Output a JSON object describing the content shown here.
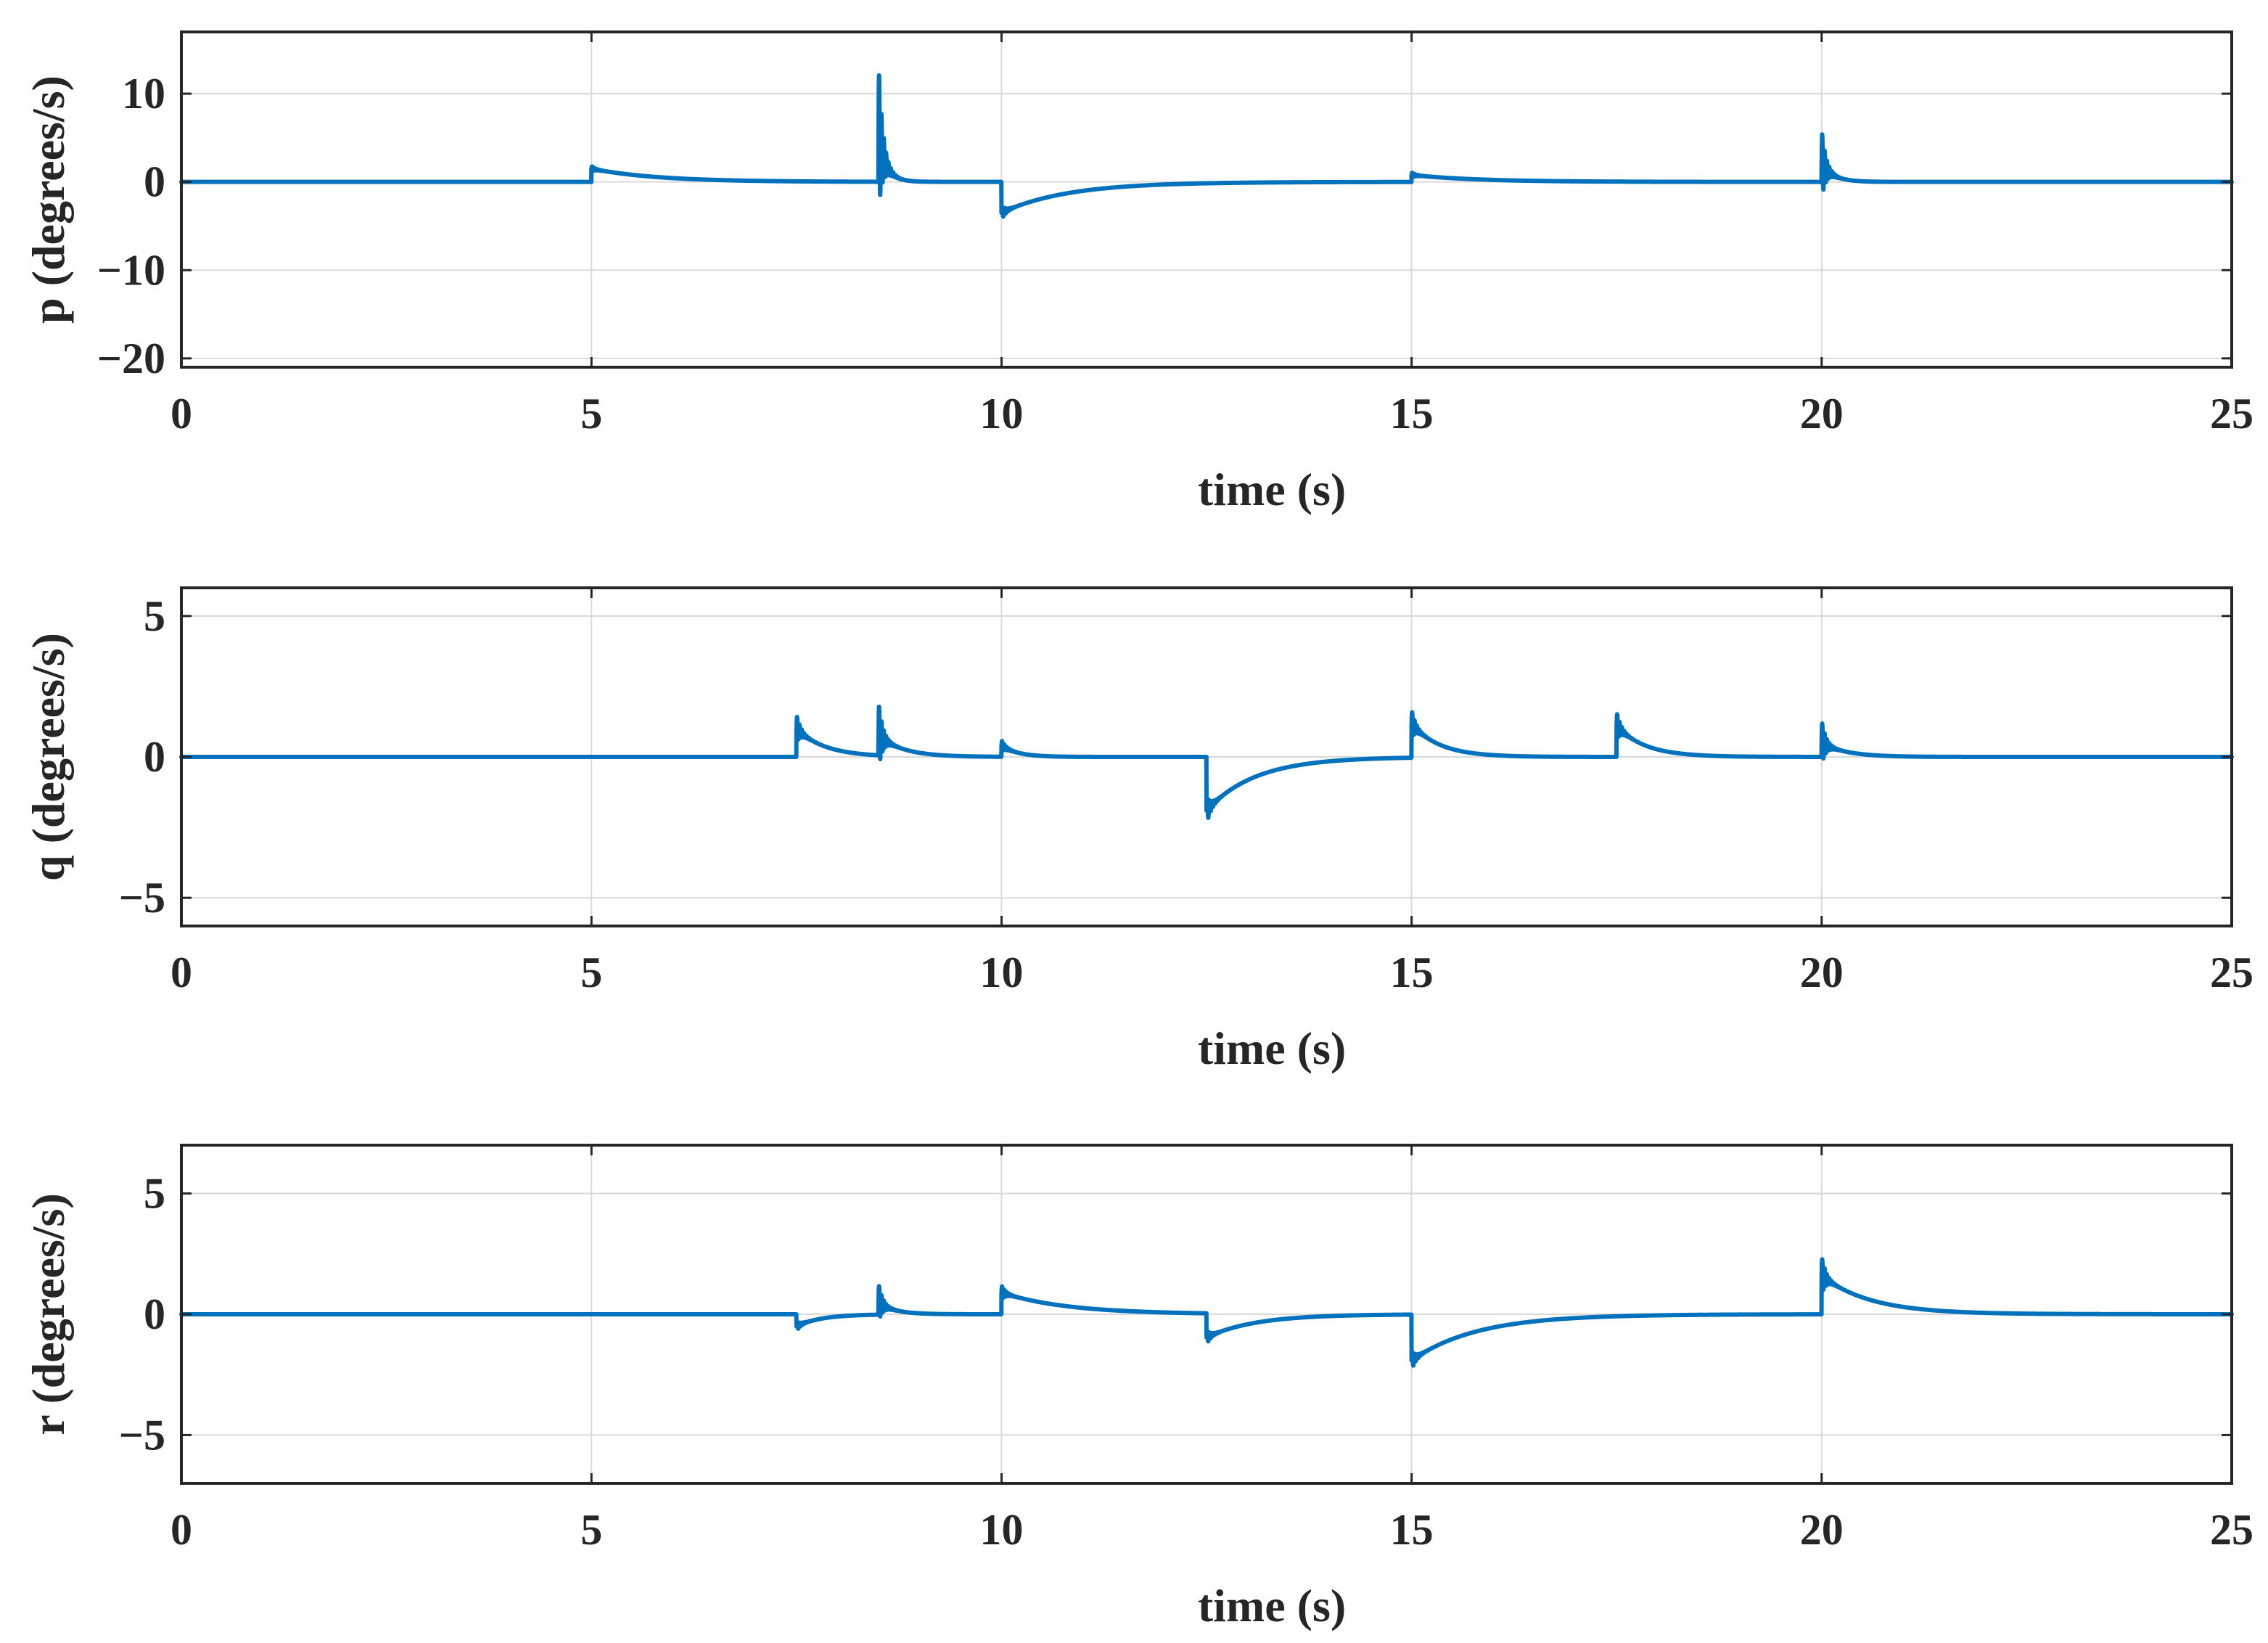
{
  "figure": {
    "background": "#ffffff",
    "series_color": "#0072BD"
  },
  "chart_data": [
    {
      "type": "line",
      "xlabel": "time (s)",
      "ylabel": "p (degrees/s)",
      "xlim": [
        0,
        25
      ],
      "ylim": [
        -21,
        17
      ],
      "xticks": [
        0,
        5,
        10,
        15,
        20,
        25
      ],
      "yticks": [
        -20,
        -10,
        0,
        10
      ],
      "xtick_labels": [
        "0",
        "5",
        "10",
        "15",
        "20",
        "25"
      ],
      "ytick_labels": [
        "−20",
        "−10",
        "0",
        "10"
      ],
      "grid": true,
      "series": [
        {
          "color": "#0072BD",
          "events": [
            {
              "t": 5.0,
              "amp": 1.5,
              "tau": 0.8,
              "osc": 0.3
            },
            {
              "t": 8.5,
              "amp": 5.0,
              "tau": 0.1,
              "osc": 8.5
            },
            {
              "t": 10.0,
              "amp": -3.5,
              "tau": 0.8,
              "osc": 0.8
            },
            {
              "t": 15.0,
              "amp": 0.8,
              "tau": 0.8,
              "osc": 0.3
            },
            {
              "t": 20.0,
              "amp": 2.0,
              "tau": 0.15,
              "osc": 4.0
            }
          ],
          "points": [
            [
              0,
              0
            ],
            [
              25,
              0
            ]
          ]
        }
      ]
    },
    {
      "type": "line",
      "xlabel": "time (s)",
      "ylabel": "q (degrees/s)",
      "xlim": [
        0,
        25
      ],
      "ylim": [
        -6,
        6
      ],
      "xticks": [
        0,
        5,
        10,
        15,
        20,
        25
      ],
      "yticks": [
        -5,
        0,
        5
      ],
      "xtick_labels": [
        "0",
        "5",
        "10",
        "15",
        "20",
        "25"
      ],
      "ytick_labels": [
        "−5",
        "0",
        "5"
      ],
      "grid": true,
      "series": [
        {
          "color": "#0072BD",
          "events": [
            {
              "t": 7.5,
              "amp": 1.0,
              "tau": 0.35,
              "osc": 0.5
            },
            {
              "t": 8.5,
              "amp": 0.7,
              "tau": 0.3,
              "osc": 1.2
            },
            {
              "t": 10.0,
              "amp": 0.4,
              "tau": 0.2,
              "osc": 0.2
            },
            {
              "t": 12.5,
              "amp": -1.9,
              "tau": 0.6,
              "osc": 0.5
            },
            {
              "t": 15.0,
              "amp": 1.2,
              "tau": 0.35,
              "osc": 0.5
            },
            {
              "t": 17.5,
              "amp": 1.1,
              "tau": 0.35,
              "osc": 0.5
            },
            {
              "t": 20.0,
              "amp": 0.5,
              "tau": 0.3,
              "osc": 0.8
            }
          ],
          "points": [
            [
              0,
              0
            ],
            [
              25,
              0
            ]
          ]
        }
      ]
    },
    {
      "type": "line",
      "xlabel": "time (s)",
      "ylabel": "r (degrees/s)",
      "xlim": [
        0,
        25
      ],
      "ylim": [
        -7,
        7
      ],
      "xticks": [
        0,
        5,
        10,
        15,
        20,
        25
      ],
      "yticks": [
        -5,
        0,
        5
      ],
      "xtick_labels": [
        "0",
        "5",
        "10",
        "15",
        "20",
        "25"
      ],
      "ytick_labels": [
        "−5",
        "0",
        "5"
      ],
      "grid": true,
      "series": [
        {
          "color": "#0072BD",
          "events": [
            {
              "t": 7.5,
              "amp": -0.5,
              "tau": 0.3,
              "osc": 0.2
            },
            {
              "t": 8.5,
              "amp": 0.5,
              "tau": 0.2,
              "osc": 0.8
            },
            {
              "t": 10.0,
              "amp": 0.9,
              "tau": 0.8,
              "osc": 0.3
            },
            {
              "t": 12.5,
              "amp": -1.0,
              "tau": 0.6,
              "osc": 0.3
            },
            {
              "t": 15.0,
              "amp": -1.9,
              "tau": 0.8,
              "osc": 0.4
            },
            {
              "t": 20.0,
              "amp": 1.6,
              "tau": 0.6,
              "osc": 0.8
            }
          ],
          "points": [
            [
              0,
              0
            ],
            [
              25,
              0
            ]
          ]
        }
      ]
    }
  ]
}
